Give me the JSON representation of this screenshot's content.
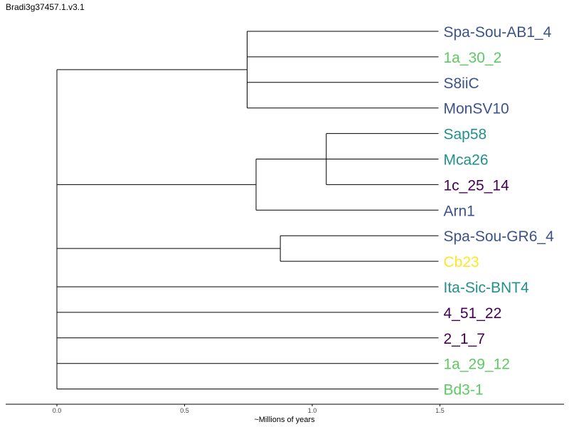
{
  "title": "Bradi3g37457.1.v3.1",
  "axis": {
    "label": "~Millions of years",
    "ticks": [
      "0.0",
      "0.5",
      "1.0",
      "1.5"
    ],
    "tick_values": [
      0.0,
      0.5,
      1.0,
      1.5
    ],
    "range": [
      0.0,
      1.95
    ]
  },
  "colors": {
    "navy": "#3b528b",
    "green": "#5ec962",
    "teal": "#21918c",
    "purple": "#440154",
    "yellow": "#fde725",
    "line": "#000000"
  },
  "leaves": [
    {
      "label": "Spa-Sou-AB1_4",
      "color": "#3b528b"
    },
    {
      "label": "1a_30_2",
      "color": "#5ec962"
    },
    {
      "label": "S8iiC",
      "color": "#3b528b"
    },
    {
      "label": "MonSV10",
      "color": "#3b528b"
    },
    {
      "label": "Sap58",
      "color": "#21918c"
    },
    {
      "label": "Mca26",
      "color": "#21918c"
    },
    {
      "label": "1c_25_14",
      "color": "#440154"
    },
    {
      "label": "Arn1",
      "color": "#3b528b"
    },
    {
      "label": "Spa-Sou-GR6_4",
      "color": "#3b528b"
    },
    {
      "label": "Cb23",
      "color": "#fde725"
    },
    {
      "label": "Ita-Sic-BNT4",
      "color": "#21918c"
    },
    {
      "label": "4_51_22",
      "color": "#440154"
    },
    {
      "label": "2_1_7",
      "color": "#440154"
    },
    {
      "label": "1a_29_12",
      "color": "#5ec962"
    },
    {
      "label": "Bd3-1",
      "color": "#5ec962"
    }
  ],
  "tree": {
    "depth": 0.0,
    "children": [
      {
        "depth": 0.745,
        "children": [
          {
            "leaf": 0
          },
          {
            "leaf": 1
          },
          {
            "leaf": 2
          },
          {
            "leaf": 3
          }
        ]
      },
      {
        "depth": 0.78,
        "children": [
          {
            "depth": 1.055,
            "children": [
              {
                "leaf": 4
              },
              {
                "leaf": 5
              },
              {
                "leaf": 6
              }
            ]
          },
          {
            "leaf": 7
          }
        ]
      },
      {
        "depth": 0.875,
        "children": [
          {
            "leaf": 8
          },
          {
            "leaf": 9
          }
        ]
      },
      {
        "leaf": 10
      },
      {
        "leaf": 11
      },
      {
        "leaf": 12
      },
      {
        "leaf": 13
      },
      {
        "leaf": 14
      }
    ]
  },
  "leaf_depth": 1.5
}
